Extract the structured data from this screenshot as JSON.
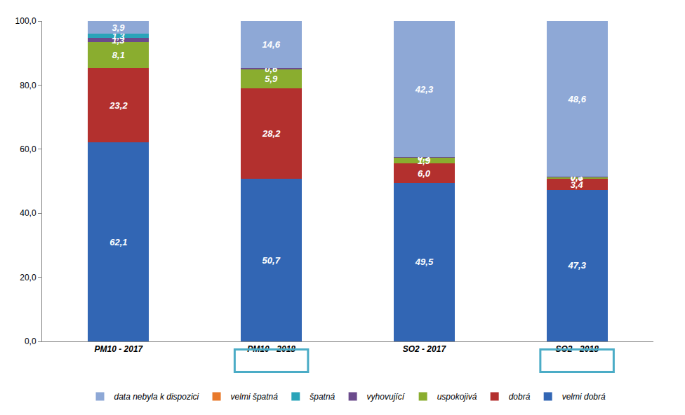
{
  "chart_data": {
    "type": "bar",
    "stacked": true,
    "data_labels": true,
    "grid": false,
    "legend": "bottom",
    "categories": [
      "PM10 - 2017",
      "PM10 - 2018",
      "SO2 - 2017",
      "SO2 - 2018"
    ],
    "ylim": [
      0,
      100
    ],
    "yticks": [
      {
        "value": 0,
        "label": "0,0"
      },
      {
        "value": 20,
        "label": "20,0"
      },
      {
        "value": 40,
        "label": "40,0"
      },
      {
        "value": 60,
        "label": "60,0"
      },
      {
        "value": 80,
        "label": "80,0"
      },
      {
        "value": 100,
        "label": "100,0"
      }
    ],
    "series": [
      {
        "name": "velmi dobrá",
        "color": "#3266b4",
        "values": [
          62.1,
          50.7,
          49.5,
          47.3
        ],
        "value_labels": [
          "62,1",
          "50,7",
          "49,5",
          "47,3"
        ]
      },
      {
        "name": "dobrá",
        "color": "#b3302e",
        "values": [
          23.2,
          28.2,
          6.0,
          3.4
        ],
        "value_labels": [
          "23,2",
          "28,2",
          "6,0",
          "3,4"
        ]
      },
      {
        "name": "uspokojivá",
        "color": "#8aad2f",
        "values": [
          8.1,
          5.9,
          1.9,
          0.6
        ],
        "value_labels": [
          "8,1",
          "5,9",
          "1,9",
          "0,6"
        ]
      },
      {
        "name": "vyhovující",
        "color": "#6b4b8c",
        "values": [
          1.3,
          0.6,
          0.2,
          0.1
        ],
        "value_labels": [
          "1,3",
          "0,6",
          "0,2",
          "0,1"
        ]
      },
      {
        "name": "špatná",
        "color": "#2aa4b9",
        "values": [
          1.3,
          null,
          null,
          null
        ],
        "value_labels": [
          "1,3",
          null,
          null,
          null
        ]
      },
      {
        "name": "velmi špatná",
        "color": "#e8792b",
        "values": [
          null,
          null,
          null,
          null
        ],
        "value_labels": [
          null,
          null,
          null,
          null
        ]
      },
      {
        "name": "data nebyla k dispozici",
        "color": "#8ea8d6",
        "values": [
          3.9,
          14.6,
          42.3,
          48.6
        ],
        "value_labels": [
          "3,9",
          "14,6",
          "42,3",
          "48,6"
        ]
      }
    ]
  }
}
